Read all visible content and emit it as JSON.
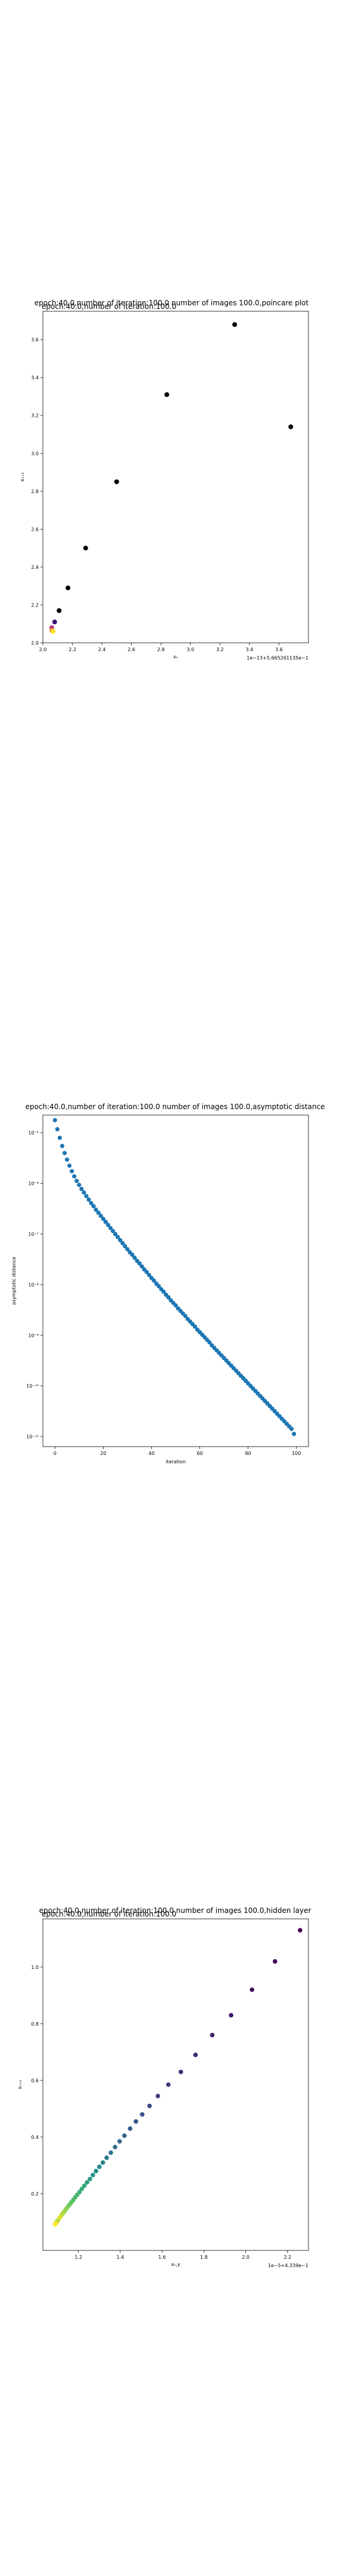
{
  "chart_data": [
    {
      "type": "scatter",
      "title": "epoch:40.0,number of iteration:100.0  number of images 100.0,poincare plot",
      "overlay_text": "epoch:40.0,number of iteration:100.0",
      "xlabel": "xₙ",
      "ylabel": "xₙ₊₁",
      "x_offset_text": "1e−13+5.665261135e−1",
      "xlim": [
        2.0,
        3.8
      ],
      "ylim": [
        2.0,
        3.75
      ],
      "x_ticks": [
        "2.0",
        "2.2",
        "2.4",
        "2.6",
        "2.8",
        "3.0",
        "3.2",
        "3.4",
        "3.6"
      ],
      "y_ticks": [
        "2.0",
        "2.2",
        "2.4",
        "2.6",
        "2.8",
        "3.0",
        "3.2",
        "3.4",
        "3.6"
      ],
      "grid": false,
      "colormap": "viridis",
      "points": [
        {
          "x": 3.68,
          "y": 3.14,
          "color": "#000000"
        },
        {
          "x": 3.3,
          "y": 3.68,
          "color": "#000000"
        },
        {
          "x": 2.84,
          "y": 3.31,
          "color": "#000000"
        },
        {
          "x": 2.5,
          "y": 2.85,
          "color": "#000000"
        },
        {
          "x": 2.29,
          "y": 2.5,
          "color": "#000000"
        },
        {
          "x": 2.17,
          "y": 2.29,
          "color": "#000000"
        },
        {
          "x": 2.11,
          "y": 2.17,
          "color": "#000000"
        },
        {
          "x": 2.08,
          "y": 2.11,
          "color": "#3b0f70"
        },
        {
          "x": 2.06,
          "y": 2.08,
          "color": "#b5367a"
        },
        {
          "x": 2.06,
          "y": 2.065,
          "color": "#f1a03a"
        },
        {
          "x": 2.07,
          "y": 2.06,
          "color": "#fde725"
        }
      ]
    },
    {
      "type": "scatter",
      "title": "epoch:40.0,number of iteration:100.0  number of images 100.0,asymptotic distance",
      "xlabel": "iteration",
      "ylabel": "asymptotic distance",
      "xlim": [
        -5,
        105
      ],
      "ylog": true,
      "ylim_log10": [
        -11.2,
        -4.65
      ],
      "x_ticks": [
        "0",
        "20",
        "40",
        "60",
        "80",
        "100"
      ],
      "y_ticks": [
        "10⁻⁵",
        "10⁻⁶",
        "10⁻⁷",
        "10⁻⁸",
        "10⁻⁹",
        "10⁻¹⁰",
        "10⁻¹¹"
      ],
      "grid": false,
      "color": "#1f77b4",
      "x": [
        0,
        1,
        2,
        3,
        4,
        5,
        6,
        7,
        8,
        9,
        10,
        11,
        12,
        13,
        14,
        15,
        16,
        17,
        18,
        19,
        20,
        21,
        22,
        23,
        24,
        25,
        26,
        27,
        28,
        29,
        30,
        31,
        32,
        33,
        34,
        35,
        36,
        37,
        38,
        39,
        40,
        41,
        42,
        43,
        44,
        45,
        46,
        47,
        48,
        49,
        50,
        51,
        52,
        53,
        54,
        55,
        56,
        57,
        58,
        59,
        60,
        61,
        62,
        63,
        64,
        65,
        66,
        67,
        68,
        69,
        70,
        71,
        72,
        73,
        74,
        75,
        76,
        77,
        78,
        79,
        80,
        81,
        82,
        83,
        84,
        85,
        86,
        87,
        88,
        89,
        90,
        91,
        92,
        93,
        94,
        95,
        96,
        97,
        98,
        99
      ],
      "log10_y": [
        -4.75,
        -4.93,
        -5.1,
        -5.26,
        -5.4,
        -5.53,
        -5.65,
        -5.76,
        -5.86,
        -5.95,
        -6.03,
        -6.11,
        -6.18,
        -6.25,
        -6.32,
        -6.39,
        -6.45,
        -6.52,
        -6.58,
        -6.64,
        -6.7,
        -6.76,
        -6.82,
        -6.88,
        -6.94,
        -7.0,
        -7.06,
        -7.12,
        -7.18,
        -7.24,
        -7.3,
        -7.36,
        -7.41,
        -7.47,
        -7.53,
        -7.58,
        -7.64,
        -7.7,
        -7.75,
        -7.81,
        -7.87,
        -7.92,
        -7.98,
        -8.03,
        -8.09,
        -8.14,
        -8.2,
        -8.25,
        -8.31,
        -8.36,
        -8.41,
        -8.47,
        -8.52,
        -8.57,
        -8.62,
        -8.68,
        -8.73,
        -8.78,
        -8.83,
        -8.89,
        -8.94,
        -8.99,
        -9.04,
        -9.09,
        -9.14,
        -9.2,
        -9.25,
        -9.3,
        -9.35,
        -9.4,
        -9.45,
        -9.5,
        -9.55,
        -9.6,
        -9.65,
        -9.7,
        -9.75,
        -9.8,
        -9.85,
        -9.9,
        -9.95,
        -10.0,
        -10.05,
        -10.1,
        -10.15,
        -10.2,
        -10.25,
        -10.3,
        -10.35,
        -10.4,
        -10.45,
        -10.5,
        -10.55,
        -10.6,
        -10.65,
        -10.7,
        -10.75,
        -10.8,
        -10.85,
        -10.95
      ]
    },
    {
      "type": "scatter",
      "title": "epoch:40.0,number of iteration:100.0  number of images 100.0,hidden layer",
      "overlay_text": "epoch:40.0,number of iteration:100.0",
      "xlabel": "xₙ,y",
      "ylabel": "xₙ₊₁",
      "x_offset_text": "1e−5+4.339e−1",
      "xlim": [
        1.03,
        2.3
      ],
      "ylim": [
        0.0,
        1.17
      ],
      "x_ticks": [
        "1.2",
        "1.4",
        "1.6",
        "1.8",
        "2.0",
        "2.2"
      ],
      "y_ticks": [
        "0.2",
        "0.4",
        "0.6",
        "0.8",
        "1.0"
      ],
      "grid": false,
      "colormap": "viridis",
      "points": [
        {
          "x": 2.26,
          "y": 1.13
        },
        {
          "x": 2.14,
          "y": 1.02
        },
        {
          "x": 2.03,
          "y": 0.92
        },
        {
          "x": 1.93,
          "y": 0.83
        },
        {
          "x": 1.84,
          "y": 0.76
        },
        {
          "x": 1.76,
          "y": 0.69
        },
        {
          "x": 1.69,
          "y": 0.63
        },
        {
          "x": 1.63,
          "y": 0.585
        },
        {
          "x": 1.58,
          "y": 0.545
        },
        {
          "x": 1.54,
          "y": 0.51
        },
        {
          "x": 1.505,
          "y": 0.48
        },
        {
          "x": 1.475,
          "y": 0.455
        },
        {
          "x": 1.447,
          "y": 0.43
        },
        {
          "x": 1.42,
          "y": 0.405
        },
        {
          "x": 1.397,
          "y": 0.385
        },
        {
          "x": 1.375,
          "y": 0.365
        },
        {
          "x": 1.355,
          "y": 0.345
        },
        {
          "x": 1.335,
          "y": 0.327
        },
        {
          "x": 1.317,
          "y": 0.31
        },
        {
          "x": 1.3,
          "y": 0.295
        },
        {
          "x": 1.284,
          "y": 0.28
        },
        {
          "x": 1.269,
          "y": 0.266
        },
        {
          "x": 1.255,
          "y": 0.252
        },
        {
          "x": 1.241,
          "y": 0.24
        },
        {
          "x": 1.228,
          "y": 0.228
        },
        {
          "x": 1.216,
          "y": 0.217
        },
        {
          "x": 1.205,
          "y": 0.206
        },
        {
          "x": 1.194,
          "y": 0.196
        },
        {
          "x": 1.184,
          "y": 0.187
        },
        {
          "x": 1.175,
          "y": 0.178
        },
        {
          "x": 1.166,
          "y": 0.17
        },
        {
          "x": 1.158,
          "y": 0.162
        },
        {
          "x": 1.15,
          "y": 0.155
        },
        {
          "x": 1.143,
          "y": 0.148
        },
        {
          "x": 1.136,
          "y": 0.141
        },
        {
          "x": 1.13,
          "y": 0.135
        },
        {
          "x": 1.124,
          "y": 0.129
        },
        {
          "x": 1.118,
          "y": 0.124
        },
        {
          "x": 1.113,
          "y": 0.118
        },
        {
          "x": 1.108,
          "y": 0.113
        },
        {
          "x": 1.104,
          "y": 0.108
        },
        {
          "x": 1.1,
          "y": 0.104
        }
      ]
    }
  ]
}
